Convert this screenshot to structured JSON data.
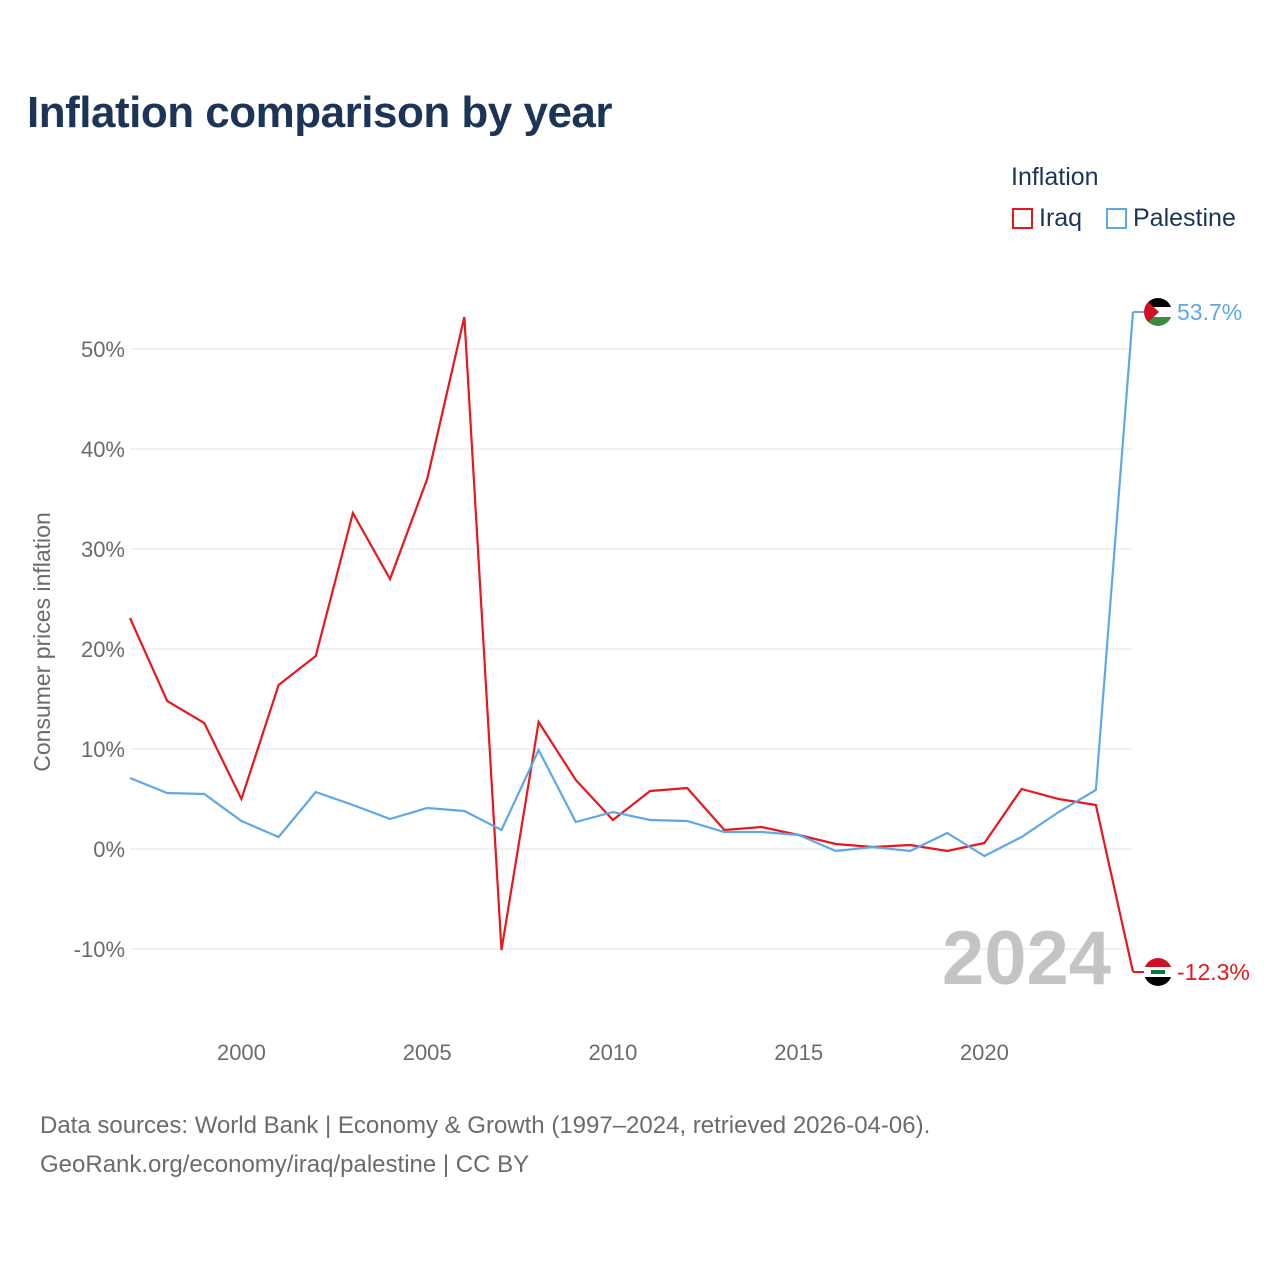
{
  "chart_data": {
    "type": "line",
    "title": "Inflation comparison by year",
    "legend_title": "Inflation",
    "legend_position": "top-right",
    "ylabel": "Consumer prices inflation",
    "xlabel": "",
    "x": [
      1997,
      1998,
      1999,
      2000,
      2001,
      2002,
      2003,
      2004,
      2005,
      2006,
      2007,
      2008,
      2009,
      2010,
      2011,
      2012,
      2013,
      2014,
      2015,
      2016,
      2017,
      2018,
      2019,
      2020,
      2021,
      2022,
      2023,
      2024
    ],
    "xlim": [
      1997,
      2024
    ],
    "ylim": [
      -17,
      57
    ],
    "x_ticks": [
      2000,
      2005,
      2010,
      2015,
      2020
    ],
    "y_ticks": [
      {
        "value": -10,
        "label": "-10%"
      },
      {
        "value": 0,
        "label": "0%"
      },
      {
        "value": 10,
        "label": "10%"
      },
      {
        "value": 20,
        "label": "20%"
      },
      {
        "value": 30,
        "label": "30%"
      },
      {
        "value": 40,
        "label": "40%"
      },
      {
        "value": 50,
        "label": "50%"
      }
    ],
    "grid": true,
    "current_year_label": "2024",
    "series": [
      {
        "name": "Iraq",
        "color": "#e8161d",
        "end_label": "-12.3%",
        "flag_icon": "iraq-flag-icon",
        "values": [
          23.1,
          14.8,
          12.6,
          5.0,
          16.4,
          19.3,
          33.6,
          27.0,
          37.0,
          53.2,
          -10.1,
          12.7,
          6.9,
          2.9,
          5.8,
          6.1,
          1.9,
          2.2,
          1.4,
          0.5,
          0.2,
          0.4,
          -0.2,
          0.6,
          6.0,
          5.0,
          4.4,
          -12.3
        ]
      },
      {
        "name": "Palestine",
        "color": "#5ea8e6",
        "end_label": "53.7%",
        "flag_icon": "palestine-flag-icon",
        "values": [
          7.1,
          5.6,
          5.5,
          2.8,
          1.2,
          5.7,
          4.4,
          3.0,
          4.1,
          3.8,
          1.9,
          9.9,
          2.7,
          3.7,
          2.9,
          2.8,
          1.7,
          1.7,
          1.4,
          -0.2,
          0.2,
          -0.2,
          1.6,
          -0.7,
          1.2,
          3.7,
          5.9,
          53.7
        ]
      }
    ]
  },
  "footer": {
    "sources": "Data sources: World Bank | Economy & Growth (1997–2024, retrieved 2026-04-06).",
    "link": "GeoRank.org/economy/iraq/palestine | CC BY"
  }
}
